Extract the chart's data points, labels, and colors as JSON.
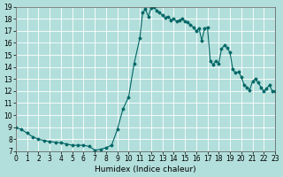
{
  "xlabel": "Humidex (Indice chaleur)",
  "background_color": "#b2dfdb",
  "plot_bg_color": "#b2dfdb",
  "grid_color": "#ffffff",
  "line_color": "#006666",
  "marker_color": "#006666",
  "xlim": [
    0,
    23
  ],
  "ylim": [
    7,
    19
  ],
  "xticks": [
    0,
    1,
    2,
    3,
    4,
    5,
    6,
    7,
    8,
    9,
    10,
    11,
    12,
    13,
    14,
    15,
    16,
    17,
    18,
    19,
    20,
    21,
    22,
    23
  ],
  "yticks": [
    7,
    8,
    9,
    10,
    11,
    12,
    13,
    14,
    15,
    16,
    17,
    18,
    19
  ],
  "x": [
    0,
    0.5,
    1,
    1.5,
    2,
    2.5,
    3,
    3.5,
    4,
    4.5,
    5,
    5.5,
    6,
    6.5,
    7,
    7.5,
    8,
    8.5,
    9,
    9.5,
    10,
    10.5,
    11,
    11.25,
    11.5,
    11.75,
    12,
    12.25,
    12.5,
    12.75,
    13,
    13.25,
    13.5,
    13.75,
    14,
    14.25,
    14.5,
    14.75,
    15,
    15.25,
    15.5,
    15.75,
    16,
    16.25,
    16.5,
    16.75,
    17,
    17.25,
    17.5,
    17.75,
    18,
    18.25,
    18.5,
    18.75,
    19,
    19.25,
    19.5,
    19.75,
    20,
    20.25,
    20.5,
    20.75,
    21,
    21.25,
    21.5,
    21.75,
    22,
    22.25,
    22.5,
    22.75,
    23
  ],
  "y": [
    9,
    8.8,
    8.5,
    8.2,
    8.0,
    7.9,
    7.8,
    7.75,
    7.7,
    7.6,
    7.5,
    7.5,
    7.5,
    7.4,
    7.1,
    7.15,
    7.3,
    7.5,
    8.8,
    10.5,
    11.5,
    14.3,
    16.4,
    18.5,
    18.8,
    18.2,
    18.9,
    19.0,
    18.7,
    18.5,
    18.3,
    18.1,
    18.2,
    17.9,
    18.0,
    17.8,
    17.9,
    18.0,
    17.8,
    17.7,
    17.5,
    17.3,
    17.0,
    17.2,
    16.2,
    17.2,
    17.3,
    14.5,
    14.2,
    14.5,
    14.3,
    15.5,
    15.8,
    15.6,
    15.2,
    13.8,
    13.5,
    13.6,
    13.2,
    12.5,
    12.3,
    12.1,
    12.8,
    13.0,
    12.7,
    12.3,
    12.0,
    12.2,
    12.5,
    12.0,
    12.0
  ]
}
